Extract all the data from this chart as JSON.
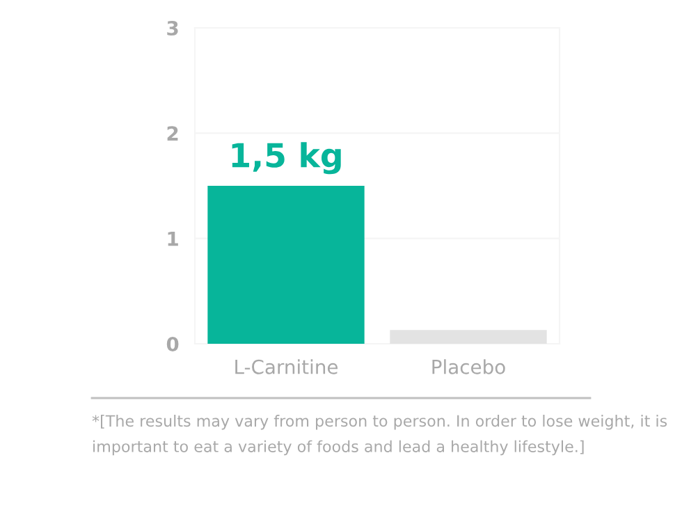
{
  "chart_data": {
    "type": "bar",
    "categories": [
      "L-Carnitine",
      "Placebo"
    ],
    "values": [
      1.5,
      0.13
    ],
    "colors": [
      "#07b59a",
      "#e3e3e3"
    ],
    "value_labels": [
      "1,5 kg",
      null
    ],
    "ylim": [
      0,
      3
    ],
    "yticks": [
      0,
      1,
      2,
      3
    ],
    "grid": "y",
    "annotations": [
      "*[The results may vary from person to person. In order to lose weight, it is important to eat a variety of foods and lead a healthy lifestyle.]"
    ]
  }
}
